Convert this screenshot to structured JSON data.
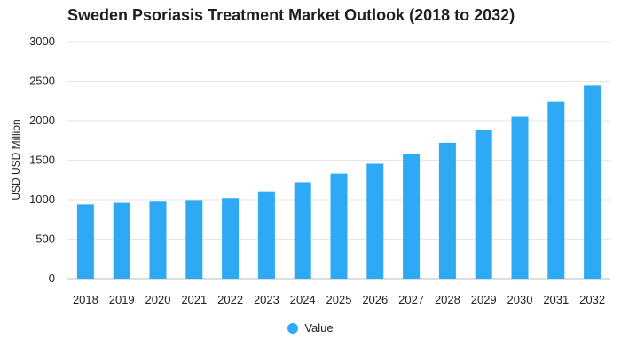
{
  "chart_data": {
    "type": "bar",
    "title": "Sweden Psoriasis Treatment Market Outlook (2018 to 2032)",
    "xlabel": "",
    "ylabel": "USD USD Million",
    "ylim": [
      0,
      3000
    ],
    "yticks": [
      0,
      500,
      1000,
      1500,
      2000,
      2500,
      3000
    ],
    "grid": true,
    "legend_position": "bottom",
    "categories": [
      "2018",
      "2019",
      "2020",
      "2021",
      "2022",
      "2023",
      "2024",
      "2025",
      "2026",
      "2027",
      "2028",
      "2029",
      "2030",
      "2031",
      "2032"
    ],
    "series": [
      {
        "name": "Value",
        "color": "#2eaaf5",
        "values": [
          940,
          960,
          975,
          995,
          1020,
          1105,
          1220,
          1330,
          1455,
          1575,
          1720,
          1880,
          2050,
          2240,
          2445
        ]
      }
    ]
  }
}
